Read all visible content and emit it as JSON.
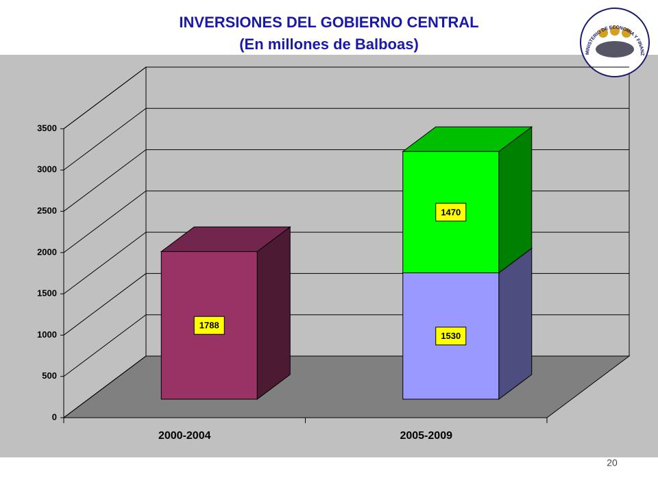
{
  "chart_data": {
    "type": "bar3d_stacked",
    "title": "INVERSIONES DEL GOBIERNO CENTRAL",
    "subtitle": "(En millones de Balboas)",
    "categories": [
      "2000-2004",
      "2005-2009"
    ],
    "series": [
      {
        "colors": [
          "#993366",
          "#9999ff"
        ],
        "values": [
          1788,
          1530
        ]
      },
      {
        "color": "#00ff00",
        "values": [
          null,
          1470
        ]
      }
    ],
    "ylim": [
      0,
      3500
    ],
    "yticks": [
      0,
      500,
      1000,
      1500,
      2000,
      2500,
      3000,
      3500
    ],
    "grid": true
  },
  "logo_text": "MINISTERIO DE ECONOMIA Y FINANZAS",
  "page_number": "20"
}
